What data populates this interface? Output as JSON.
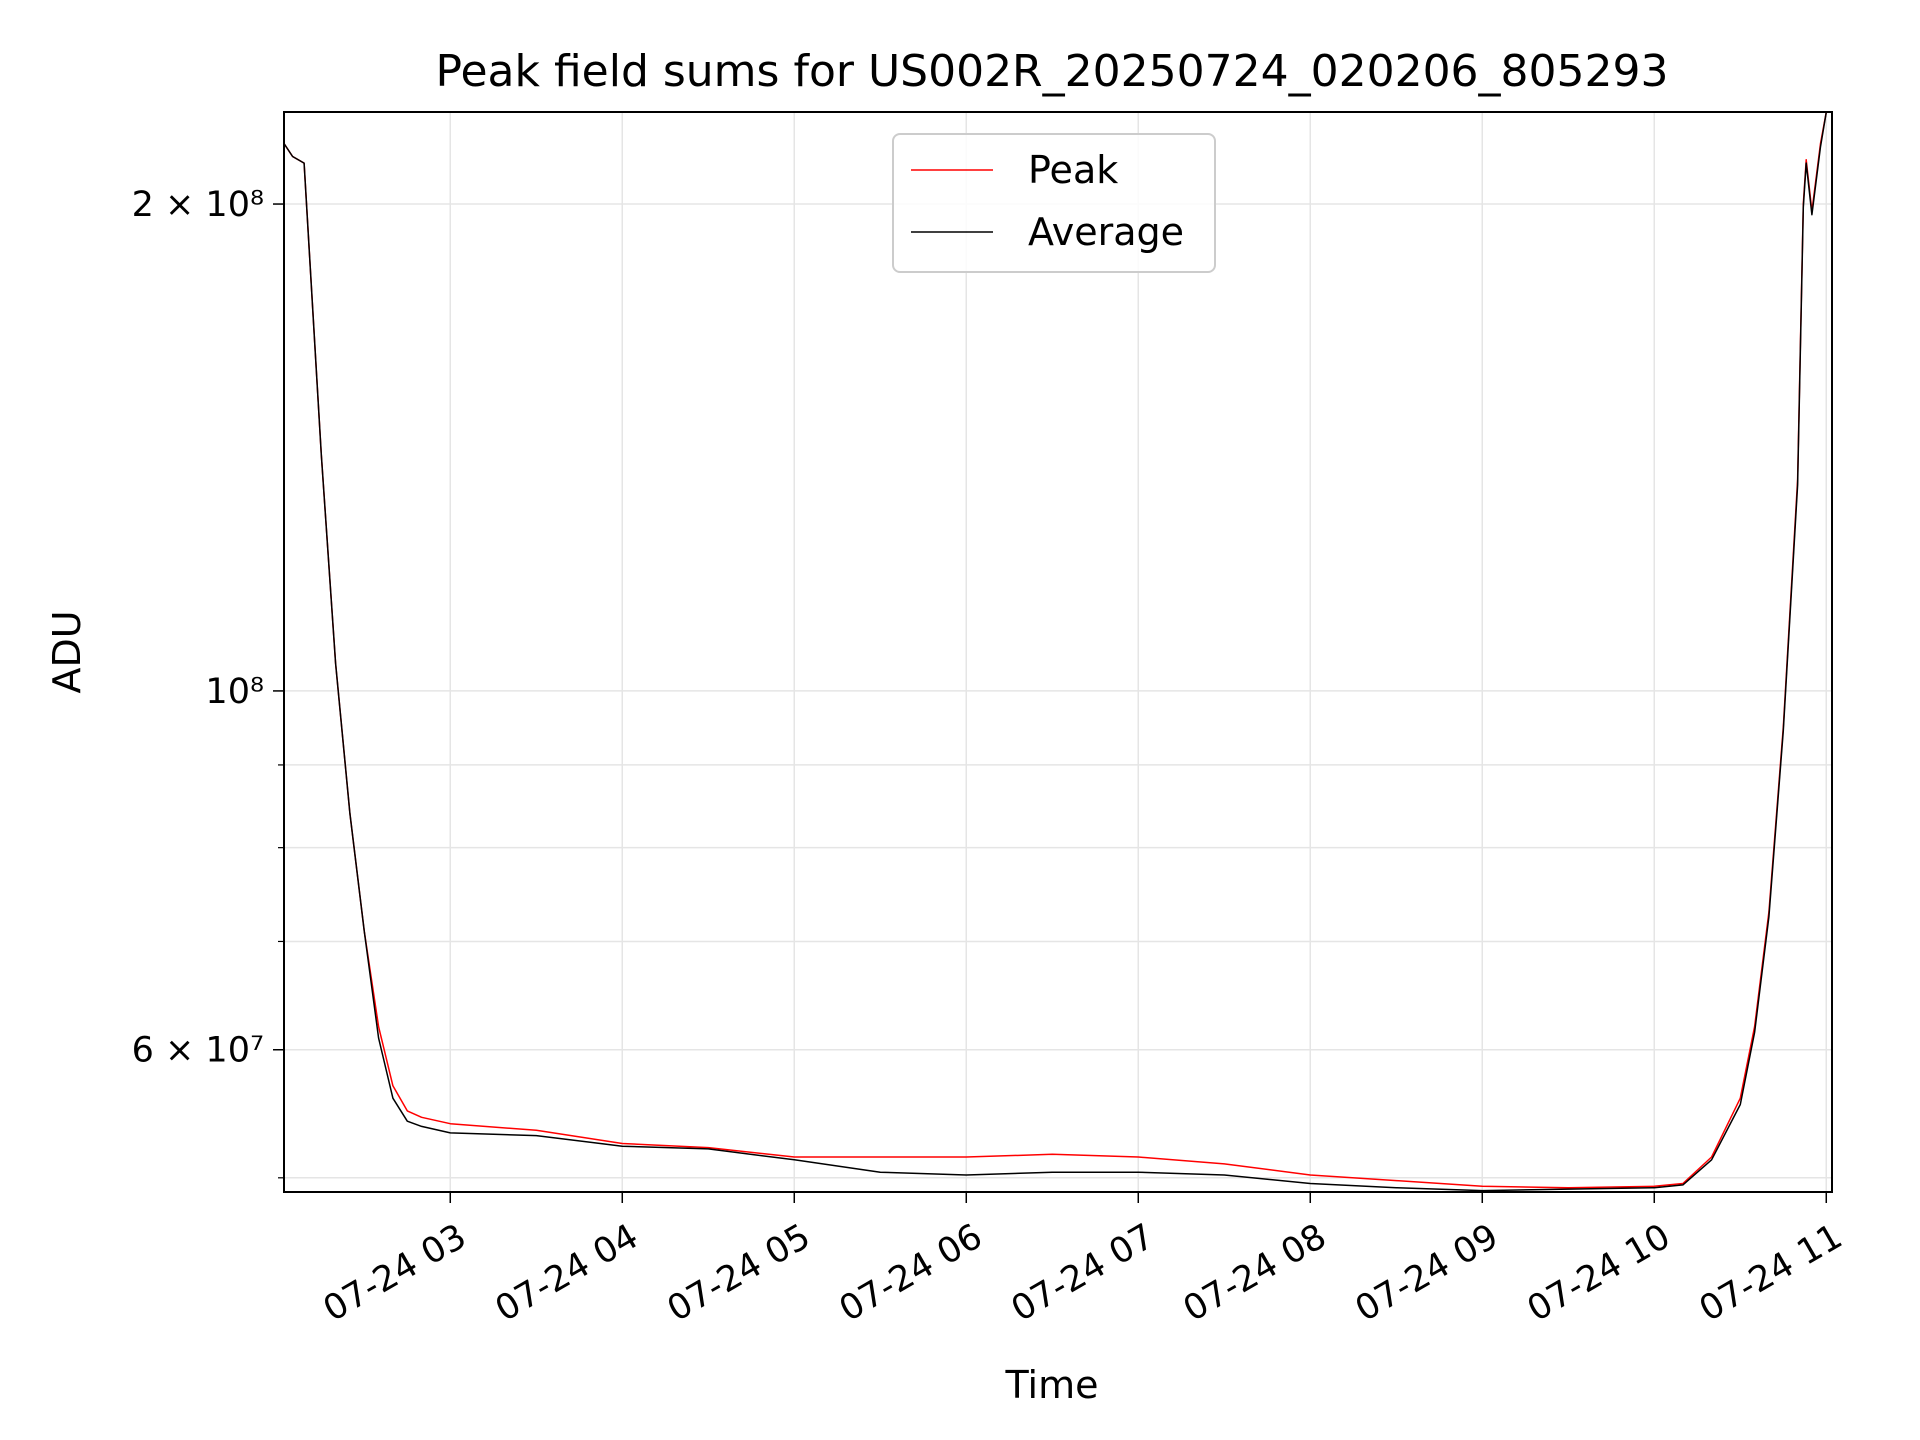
{
  "chart_data": {
    "type": "line",
    "title": "Peak field sums for US002R_20250724_020206_805293",
    "xlabel": "Time",
    "ylabel": "ADU",
    "yscale": "log",
    "ylim": [
      49000000,
      228000000
    ],
    "xlim": [
      "2025-07-24 02:02",
      "2025-07-24 11:02"
    ],
    "grid": true,
    "legend": "upper center",
    "x_ticks": [
      "07-24 03",
      "07-24 04",
      "07-24 05",
      "07-24 06",
      "07-24 07",
      "07-24 08",
      "07-24 09",
      "07-24 10",
      "07-24 11"
    ],
    "y_ticks": [
      {
        "value": 200000000,
        "label": "2 × 10⁸"
      },
      {
        "value": 100000000,
        "label": "10⁸"
      },
      {
        "value": 60000000,
        "label": "6 × 10⁷"
      }
    ],
    "y_minor_ticks": [
      50000000,
      70000000,
      80000000,
      90000000
    ],
    "x": [
      "2025-07-24 02:02",
      "2025-07-24 02:05",
      "2025-07-24 02:09",
      "2025-07-24 02:15",
      "2025-07-24 02:20",
      "2025-07-24 02:25",
      "2025-07-24 02:30",
      "2025-07-24 02:35",
      "2025-07-24 02:40",
      "2025-07-24 02:45",
      "2025-07-24 02:50",
      "2025-07-24 03:00",
      "2025-07-24 03:30",
      "2025-07-24 04:00",
      "2025-07-24 04:30",
      "2025-07-24 05:00",
      "2025-07-24 05:30",
      "2025-07-24 06:00",
      "2025-07-24 06:30",
      "2025-07-24 07:00",
      "2025-07-24 07:30",
      "2025-07-24 08:00",
      "2025-07-24 08:30",
      "2025-07-24 09:00",
      "2025-07-24 09:30",
      "2025-07-24 10:00",
      "2025-07-24 10:10",
      "2025-07-24 10:20",
      "2025-07-24 10:30",
      "2025-07-24 10:35",
      "2025-07-24 10:40",
      "2025-07-24 10:45",
      "2025-07-24 10:50",
      "2025-07-24 10:52",
      "2025-07-24 10:53",
      "2025-07-24 10:55",
      "2025-07-24 10:58",
      "2025-07-24 11:00"
    ],
    "series": [
      {
        "name": "Peak",
        "color": "#ff0000",
        "values": [
          218000000,
          214000000,
          212000000,
          140000000,
          104000000,
          84000000,
          71000000,
          62000000,
          57000000,
          55000000,
          54500000,
          54000000,
          53500000,
          52500000,
          52200000,
          51500000,
          51500000,
          51500000,
          51700000,
          51500000,
          51000000,
          50200000,
          49800000,
          49400000,
          49300000,
          49400000,
          49600000,
          51500000,
          56000000,
          62000000,
          73000000,
          95000000,
          135000000,
          200000000,
          213000000,
          198000000,
          218000000,
          228000000
        ]
      },
      {
        "name": "Average",
        "color": "#000000",
        "values": [
          218000000,
          214000000,
          212000000,
          140000000,
          104000000,
          84000000,
          71000000,
          61000000,
          56000000,
          54200000,
          53800000,
          53300000,
          53100000,
          52300000,
          52100000,
          51300000,
          50400000,
          50200000,
          50400000,
          50400000,
          50200000,
          49600000,
          49300000,
          49100000,
          49200000,
          49300000,
          49500000,
          51300000,
          55500000,
          61500000,
          72500000,
          94500000,
          134000000,
          199000000,
          212000000,
          197000000,
          217000000,
          228000000
        ]
      }
    ]
  }
}
